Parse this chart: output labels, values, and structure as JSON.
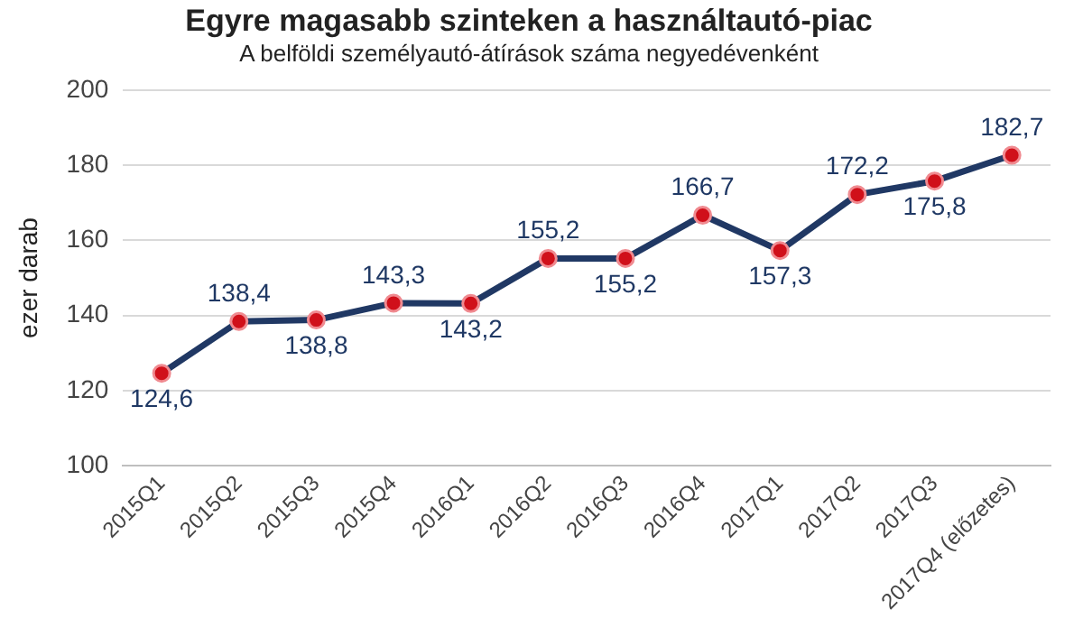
{
  "chart_data": {
    "type": "line",
    "title": "Egyre magasabb szinteken a használtautó-piac",
    "subtitle": "A belföldi személyautó-átírások száma negyedévenként",
    "ylabel": "ezer darab",
    "categories": [
      "2015Q1",
      "2015Q2",
      "2015Q3",
      "2015Q4",
      "2016Q1",
      "2016Q2",
      "2016Q3",
      "2016Q4",
      "2017Q1",
      "2017Q2",
      "2017Q3",
      "2017Q4 (előzetes)"
    ],
    "series": [
      {
        "color": "#203864",
        "values": [
          124.6,
          138.4,
          138.8,
          143.3,
          143.2,
          155.2,
          155.2,
          166.7,
          157.3,
          172.2,
          175.8,
          182.7
        ],
        "value_labels": [
          "124,6",
          "138,4",
          "138,8",
          "143,3",
          "143,2",
          "155,2",
          "155,2",
          "166,7",
          "157,3",
          "172,2",
          "175,8",
          "182,7"
        ]
      }
    ],
    "ylim": [
      100,
      200
    ],
    "yticks": [
      100,
      120,
      140,
      160,
      180,
      200
    ],
    "grid": "y",
    "legend": false,
    "marker": "circle",
    "line_style": "solid"
  }
}
